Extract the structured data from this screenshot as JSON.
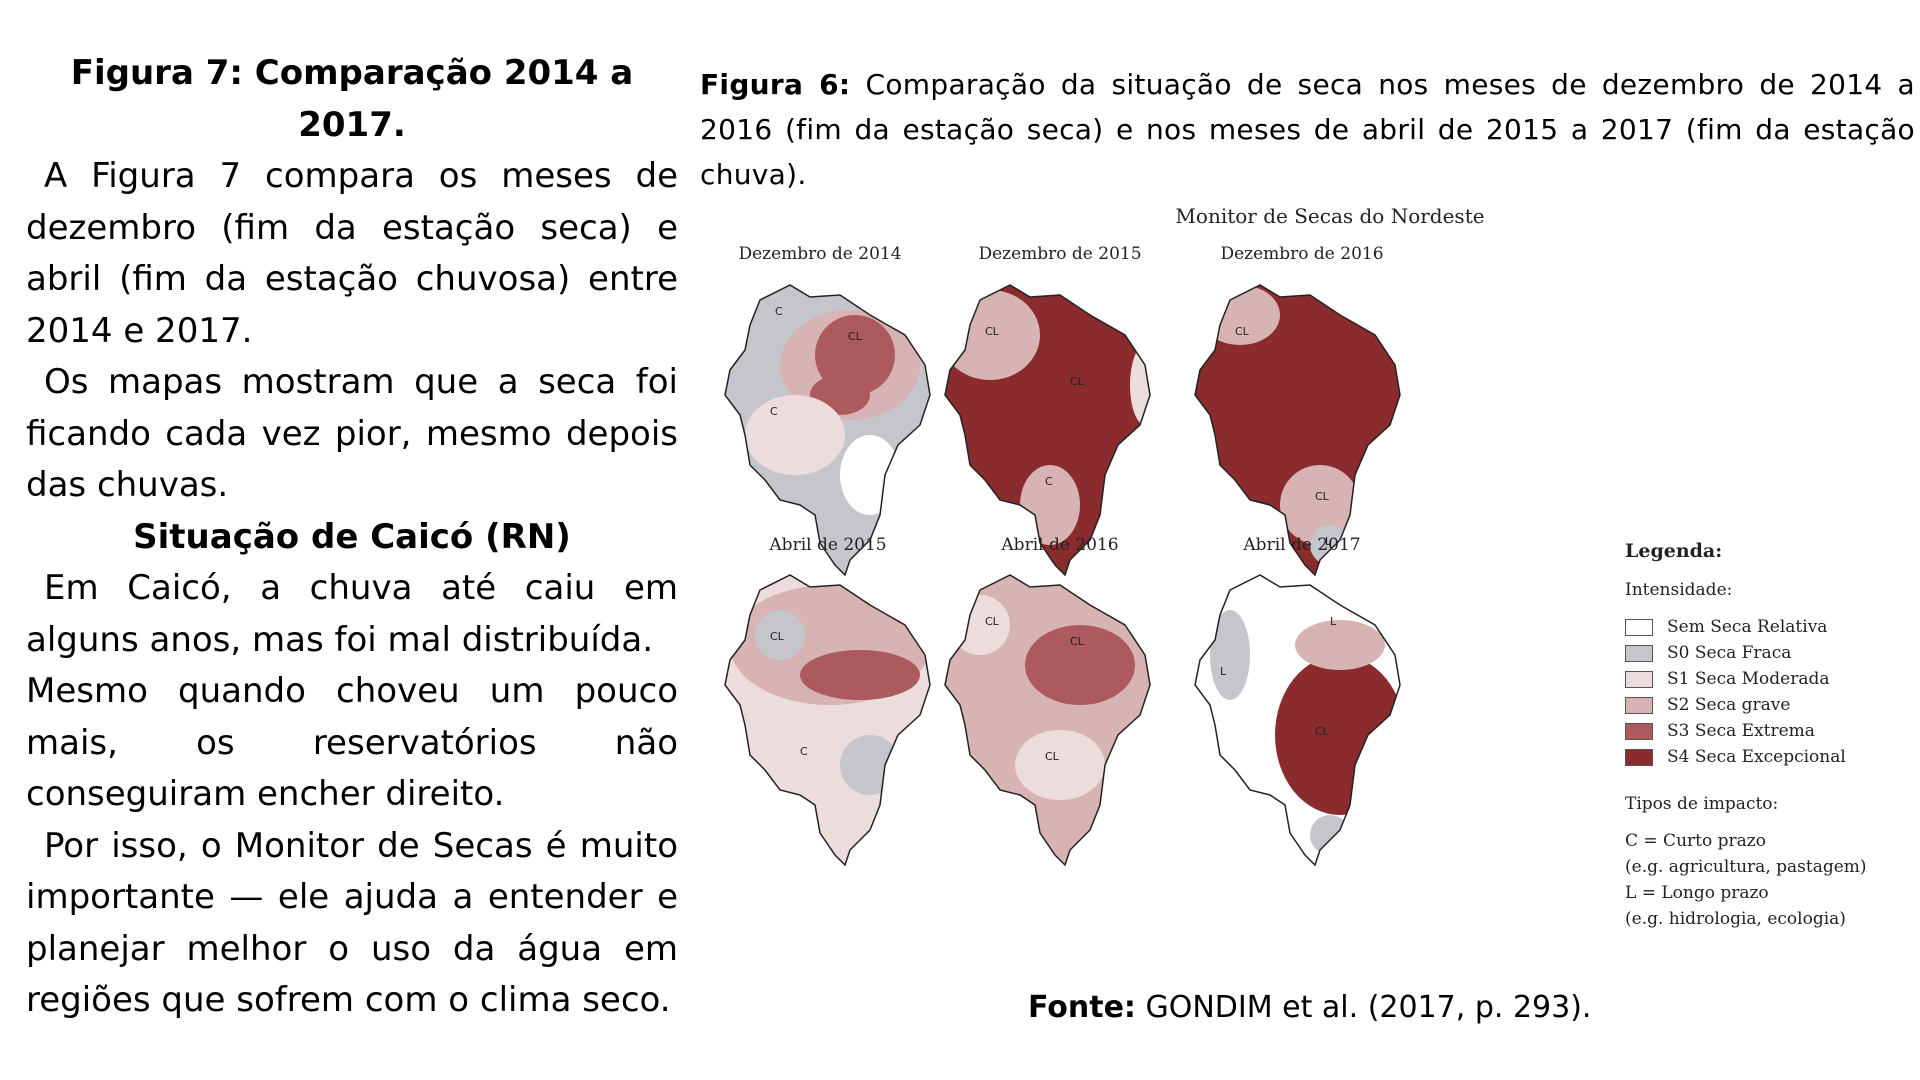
{
  "left_text": {
    "heading1": "Figura 7: Comparação 2014 a 2017.",
    "para1": "A Figura 7 compara os meses de dezembro (fim da estação seca) e abril (fim da estação chuvosa) entre 2014 e 2017.",
    "para2": "Os mapas mostram que a seca foi ficando cada vez pior, mesmo depois das chuvas.",
    "heading2": "Situação de Caicó (RN)",
    "para3": "Em Caicó, a chuva até caiu em alguns anos, mas foi mal distribuída.",
    "para4": "Mesmo quando choveu um pouco mais, os reservatórios não conseguiram encher direito.",
    "para5": "Por isso, o Monitor de Secas é muito importante — ele ajuda a entender e planejar melhor o uso da água em regiões que sofrem com o clima seco."
  },
  "caption": {
    "label": "Figura 6:",
    "text": "Comparação da situação de seca nos meses de dezembro de 2014 a 2016 (fim da estação seca) e nos meses de abril de 2015 a 2017 (fim da estação chuva)."
  },
  "figure": {
    "title": "Monitor de Secas do Nordeste",
    "maps": [
      {
        "title": "Dezembro de 2014"
      },
      {
        "title": "Dezembro de 2015"
      },
      {
        "title": "Dezembro de 2016"
      },
      {
        "title": "Abril de 2015"
      },
      {
        "title": "Abril de 2016"
      },
      {
        "title": "Abril de 2017"
      }
    ],
    "region_labels": {
      "c": "C",
      "cl": "CL",
      "l": "L"
    }
  },
  "legend": {
    "title": "Legenda:",
    "intensity_label": "Intensidade:",
    "items": [
      {
        "label": "Sem Seca Relativa",
        "color": "#ffffff"
      },
      {
        "label": "S0 Seca Fraca",
        "color": "#c4c6cb"
      },
      {
        "label": "S1 Seca Moderada",
        "color": "#ecdcdc"
      },
      {
        "label": "S2 Seca grave",
        "color": "#d7b3b3"
      },
      {
        "label": "S3 Seca Extrema",
        "color": "#ad5a5e"
      },
      {
        "label": "S4 Seca Excepcional",
        "color": "#8a2c2e"
      }
    ],
    "impact_label": "Tipos de impacto:",
    "impacts": [
      "C = Curto prazo",
      "(e.g. agricultura, pastagem)",
      "L = Longo prazo",
      "(e.g. hidrologia, ecologia)"
    ]
  },
  "source": {
    "label": "Fonte:",
    "text": "GONDIM et al. (2017, p. 293)."
  }
}
